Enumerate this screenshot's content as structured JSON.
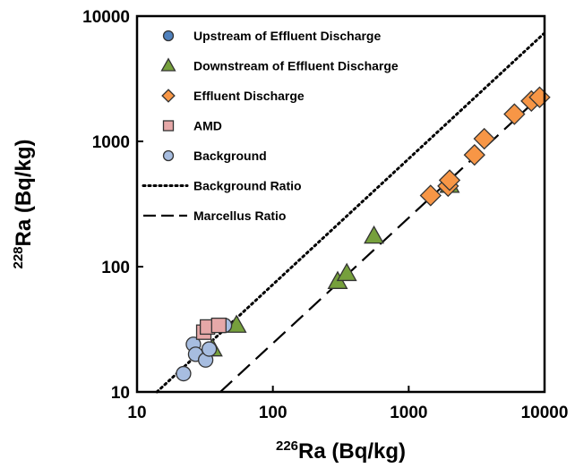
{
  "chart_data": {
    "type": "scatter",
    "xscale": "log",
    "yscale": "log",
    "xlim": [
      10,
      10000
    ],
    "ylim": [
      10,
      10000
    ],
    "xticks": [
      "10",
      "100",
      "1000",
      "10000"
    ],
    "yticks": [
      "10",
      "100",
      "1000",
      "10000"
    ],
    "xlabel": {
      "sup": "226",
      "main": "Ra (Bq/kg)"
    },
    "ylabel": {
      "sup": "228",
      "main": "Ra (Bq/kg)"
    },
    "grid": false,
    "legend_position": "top-left",
    "series": [
      {
        "name": "Upstream of Effluent Discharge",
        "marker": "circle",
        "color": "#4f81bd",
        "points": []
      },
      {
        "name": "Downstream of Effluent Discharge",
        "marker": "triangle",
        "color": "#76a03c",
        "points": [
          [
            36,
            22
          ],
          [
            54,
            34
          ],
          [
            300,
            76
          ],
          [
            350,
            88
          ],
          [
            555,
            175
          ],
          [
            2000,
            445
          ]
        ]
      },
      {
        "name": "Effluent Discharge",
        "marker": "diamond",
        "color": "#f79646",
        "points": [
          [
            1450,
            370
          ],
          [
            1950,
            440
          ],
          [
            2000,
            490
          ],
          [
            3050,
            780
          ],
          [
            3600,
            1050
          ],
          [
            6000,
            1650
          ],
          [
            8000,
            2100
          ],
          [
            9200,
            2250
          ]
        ]
      },
      {
        "name": "AMD",
        "marker": "square",
        "color": "#e6a8a8",
        "points": [
          [
            31,
            30
          ],
          [
            33,
            33
          ],
          [
            40,
            34
          ]
        ]
      },
      {
        "name": "Background",
        "marker": "circle",
        "color": "#a7bde0",
        "points": [
          [
            22,
            14
          ],
          [
            26,
            24
          ],
          [
            27,
            20
          ],
          [
            32,
            18
          ],
          [
            34,
            22
          ],
          [
            44,
            34
          ]
        ]
      },
      {
        "name": "Background Ratio",
        "line": "dotted",
        "color": "#000000",
        "x": [
          14,
          9800
        ],
        "y": [
          10,
          7200
        ]
      },
      {
        "name": "Marcellus Ratio",
        "line": "dashed",
        "color": "#000000",
        "x": [
          41,
          9800
        ],
        "y": [
          10,
          2420
        ]
      }
    ]
  }
}
